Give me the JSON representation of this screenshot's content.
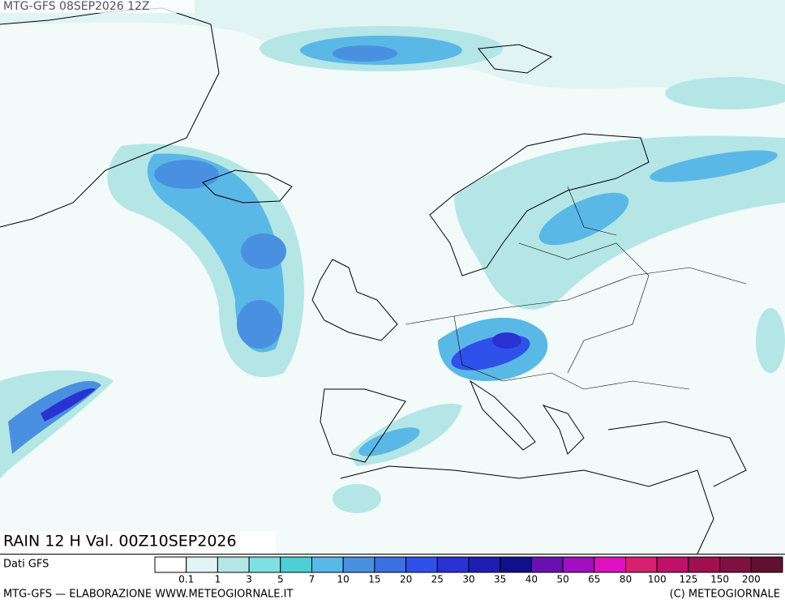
{
  "header": {
    "title": "MTG-GFS 08SEP2026 12Z"
  },
  "map": {
    "caption": "RAIN 12 H Val. 00Z10SEP2026"
  },
  "legend": {
    "source": "Dati GFS",
    "labels": [
      0.1,
      1,
      3,
      5,
      7,
      10,
      15,
      20,
      25,
      30,
      35,
      40,
      50,
      65,
      80,
      100,
      125,
      150,
      200
    ],
    "colors": [
      "#ffffff",
      "#e0f4f4",
      "#b4e6e6",
      "#7ee0e0",
      "#4ecfd6",
      "#5ab8e6",
      "#4a90e0",
      "#3a70e0",
      "#3050ea",
      "#2a32d2",
      "#1e1eb0",
      "#10108a",
      "#6a10b0",
      "#a010c0",
      "#e010c0",
      "#d82070",
      "#c0106a",
      "#a01050",
      "#801040",
      "#601030"
    ]
  },
  "footer": {
    "left": "MTG-GFS — ELABORAZIONE WWW.METEOGIORNALE.IT",
    "right": "(C) METEOGIORNALE"
  }
}
